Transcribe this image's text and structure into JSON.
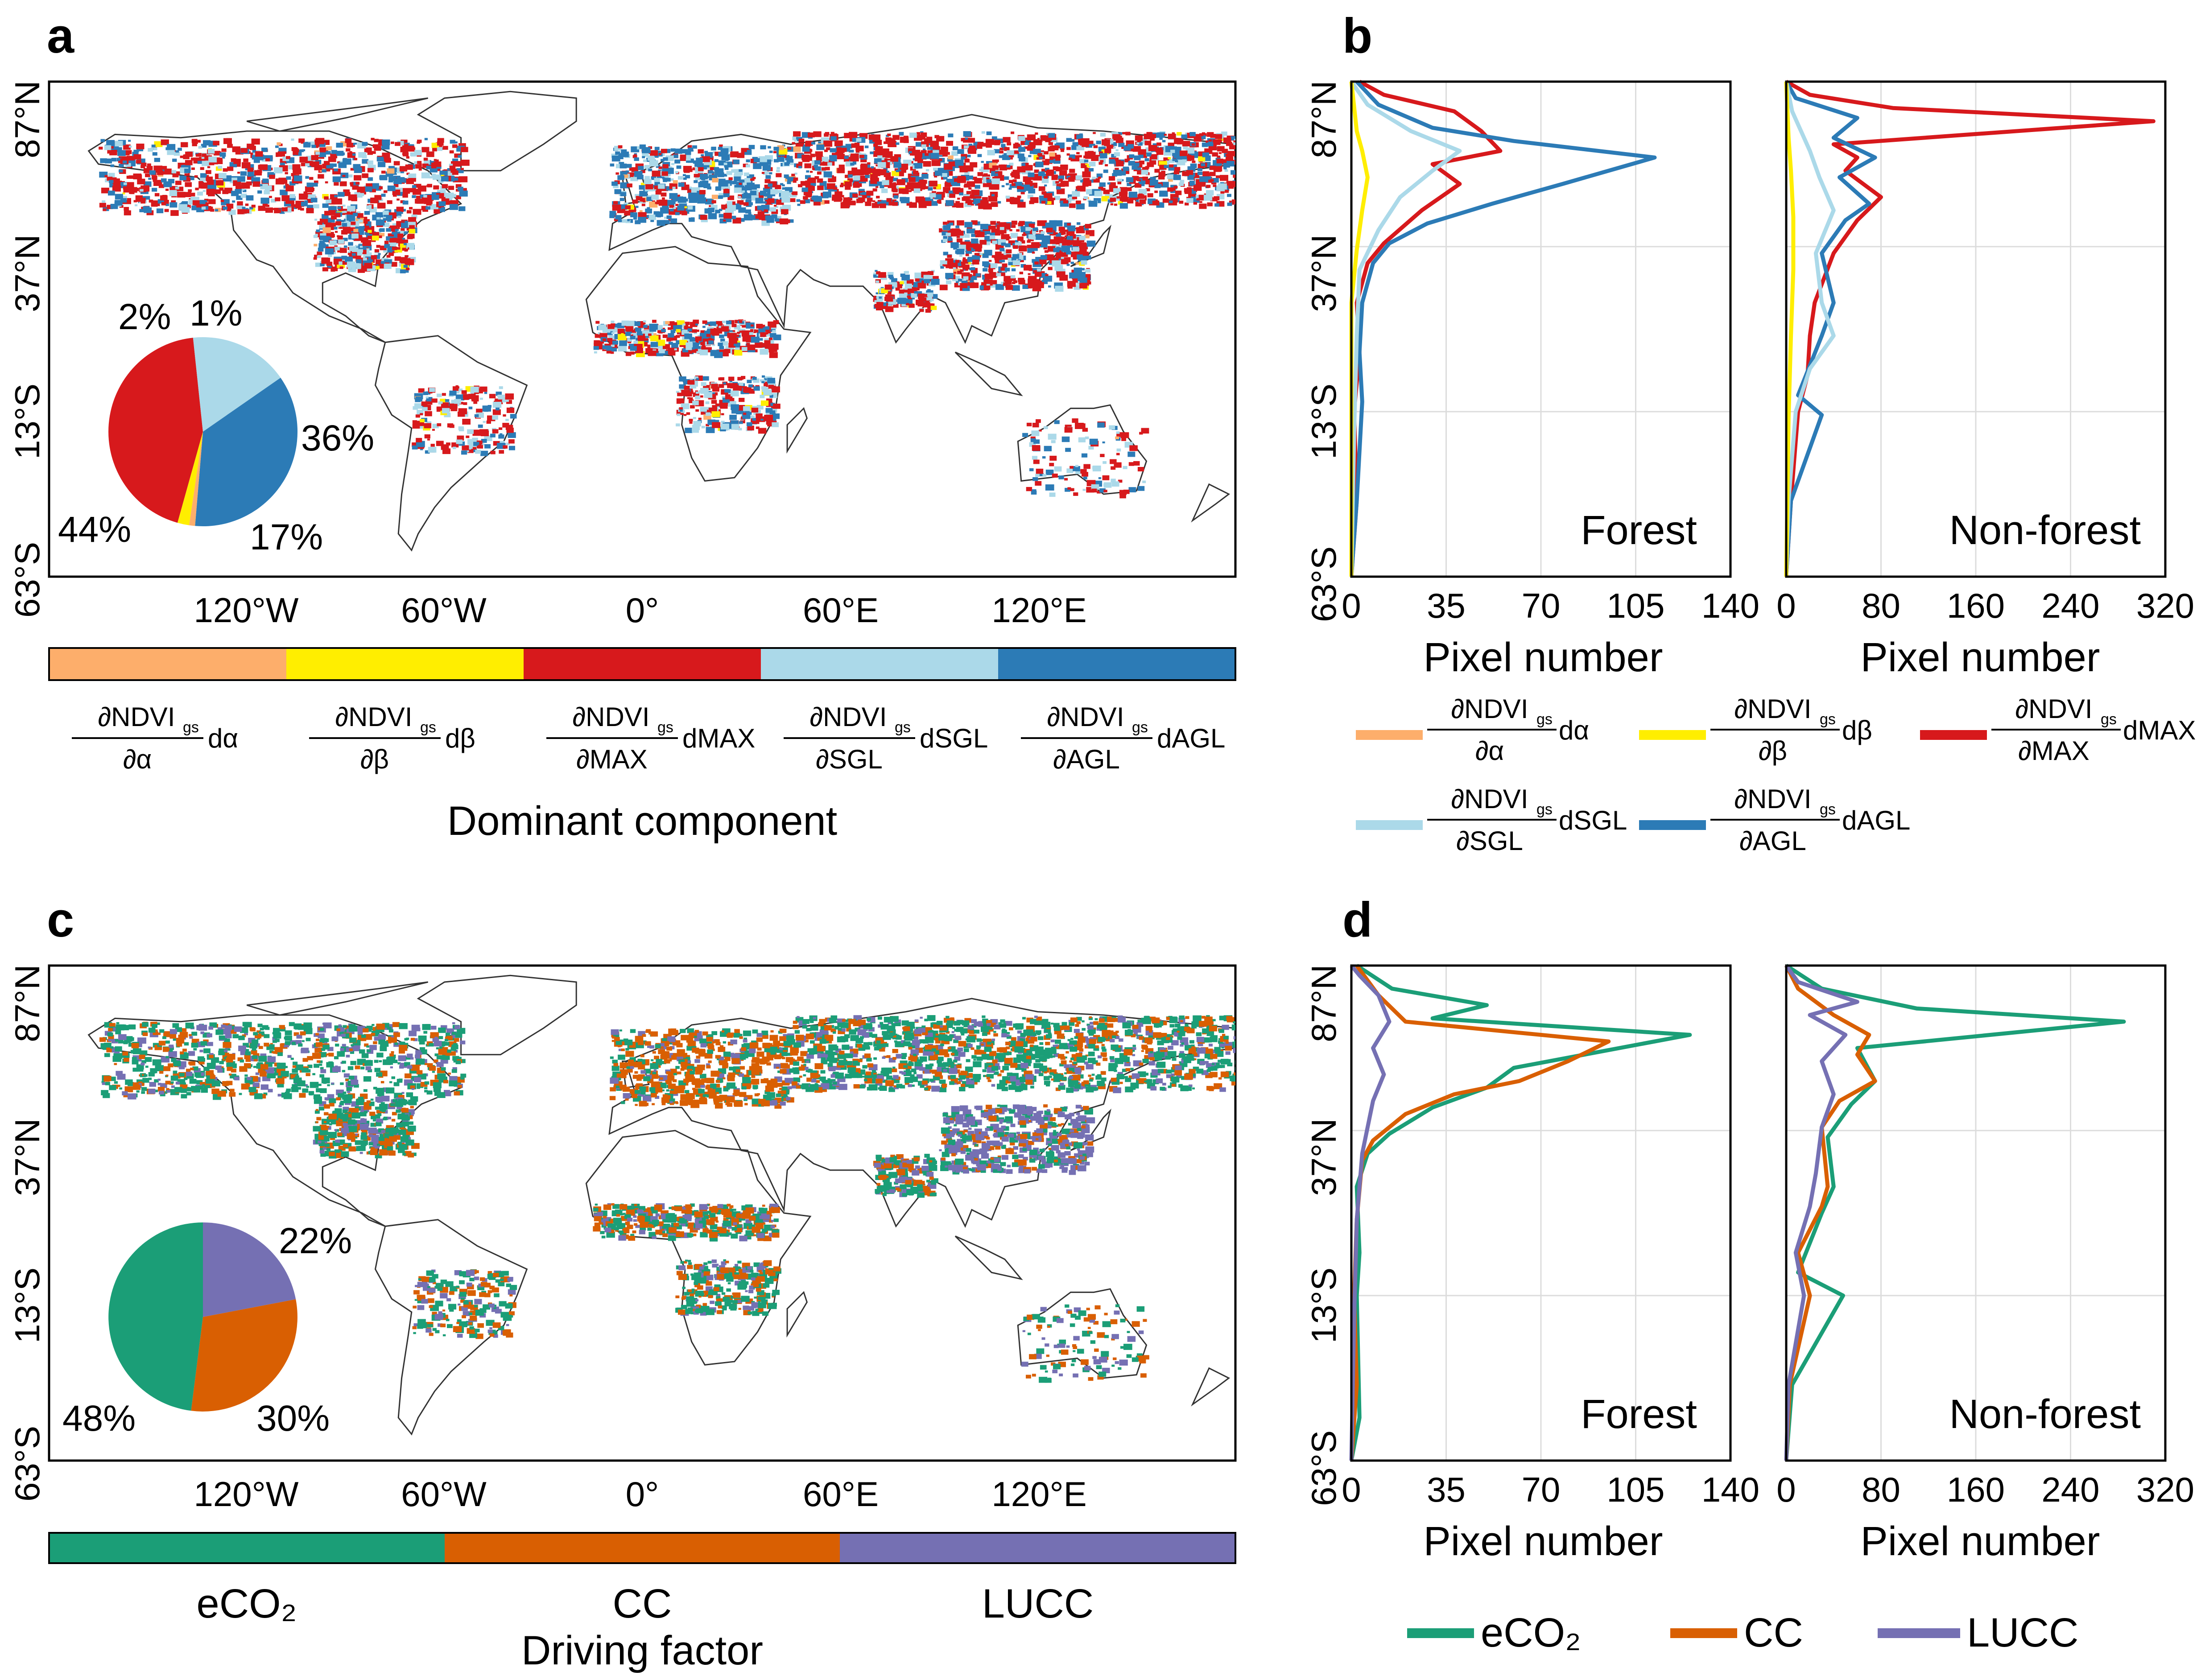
{
  "panels": {
    "a": "a",
    "b": "b",
    "c": "c",
    "d": "d"
  },
  "map": {
    "lat_ticks": [
      "87°N",
      "37°N",
      "13°S",
      "63°S"
    ],
    "lon_ticks": [
      "120°W",
      "60°W",
      "0°",
      "60°E",
      "120°E"
    ]
  },
  "colors": {
    "dalpha": "#fdae6b",
    "dbeta": "#ffee00",
    "dmax": "#d7191c",
    "dsgl": "#abd9e9",
    "dagl": "#2c7bb6",
    "eco2": "#1b9e77",
    "cc": "#d95f02",
    "lucc": "#7570b3"
  },
  "panel_a": {
    "pie": [
      {
        "component": "dMAX",
        "value": 44,
        "label": "44%"
      },
      {
        "component": "dSGL",
        "value": 17,
        "label": "17%"
      },
      {
        "component": "dAGL",
        "value": 36,
        "label": "36%"
      },
      {
        "component": "dα",
        "value": 1,
        "label": "1%"
      },
      {
        "component": "dβ",
        "value": 2,
        "label": "2%"
      }
    ],
    "legend": [
      {
        "num": "∂NDVI",
        "sub": "gs",
        "den": "∂α",
        "d": "dα"
      },
      {
        "num": "∂NDVI",
        "sub": "gs",
        "den": "∂β",
        "d": "dβ"
      },
      {
        "num": "∂NDVI",
        "sub": "gs",
        "den": "∂MAX",
        "d": "dMAX"
      },
      {
        "num": "∂NDVI",
        "sub": "gs",
        "den": "∂SGL",
        "d": "dSGL"
      },
      {
        "num": "∂NDVI",
        "sub": "gs",
        "den": "∂AGL",
        "d": "dAGL"
      }
    ],
    "legend_title": "Dominant component"
  },
  "panel_c": {
    "pie": [
      {
        "factor": "eCO₂",
        "value": 48,
        "label": "48%"
      },
      {
        "factor": "CC",
        "value": 30,
        "label": "30%"
      },
      {
        "factor": "LUCC",
        "value": 22,
        "label": "22%"
      }
    ],
    "legend": [
      "eCO₂",
      "CC",
      "LUCC"
    ],
    "legend_title": "Driving factor"
  },
  "profiles": {
    "xlabel": "Pixel number",
    "forest": {
      "title": "Forest",
      "xlim": [
        0,
        140
      ],
      "xticks": [
        "0",
        "35",
        "70",
        "105",
        "140"
      ]
    },
    "nonforest": {
      "title": "Non-forest",
      "xlim": [
        0,
        320
      ],
      "xticks": [
        "0",
        "80",
        "160",
        "240",
        "320"
      ]
    }
  },
  "chart_data": [
    {
      "type": "line",
      "panel": "b",
      "subplot": "Forest",
      "ylabel": "",
      "xlabel": "Pixel number",
      "xlim": [
        0,
        140
      ],
      "ylim": [
        -63,
        87
      ],
      "y_axis": "latitude",
      "series": [
        {
          "name": "dMAX",
          "points": [
            [
              0,
              -63
            ],
            [
              2,
              -40
            ],
            [
              1,
              -13
            ],
            [
              3,
              5
            ],
            [
              2,
              20
            ],
            [
              6,
              32
            ],
            [
              12,
              38
            ],
            [
              26,
              48
            ],
            [
              40,
              56
            ],
            [
              30,
              62
            ],
            [
              55,
              66
            ],
            [
              48,
              72
            ],
            [
              38,
              78
            ],
            [
              12,
              83
            ],
            [
              3,
              87
            ]
          ]
        },
        {
          "name": "dAGL",
          "points": [
            [
              0,
              -63
            ],
            [
              2,
              -40
            ],
            [
              4,
              -10
            ],
            [
              3,
              5
            ],
            [
              4,
              20
            ],
            [
              8,
              32
            ],
            [
              14,
              38
            ],
            [
              28,
              44
            ],
            [
              52,
              50
            ],
            [
              78,
              56
            ],
            [
              112,
              64
            ],
            [
              60,
              69
            ],
            [
              30,
              73
            ],
            [
              10,
              80
            ],
            [
              2,
              87
            ]
          ]
        },
        {
          "name": "dSGL",
          "points": [
            [
              0,
              -63
            ],
            [
              1,
              -20
            ],
            [
              2,
              10
            ],
            [
              3,
              30
            ],
            [
              10,
              42
            ],
            [
              18,
              52
            ],
            [
              30,
              60
            ],
            [
              40,
              66
            ],
            [
              22,
              72
            ],
            [
              6,
              80
            ],
            [
              0,
              87
            ]
          ]
        },
        {
          "name": "dβ",
          "points": [
            [
              0,
              -63
            ],
            [
              0,
              20
            ],
            [
              2,
              36
            ],
            [
              4,
              48
            ],
            [
              6,
              58
            ],
            [
              4,
              66
            ],
            [
              2,
              72
            ],
            [
              0,
              87
            ]
          ]
        }
      ]
    },
    {
      "type": "line",
      "panel": "b",
      "subplot": "Non-forest",
      "ylabel": "",
      "xlabel": "Pixel number",
      "xlim": [
        0,
        320
      ],
      "ylim": [
        -63,
        87
      ],
      "y_axis": "latitude",
      "series": [
        {
          "name": "dMAX",
          "points": [
            [
              0,
              -63
            ],
            [
              4,
              -40
            ],
            [
              10,
              -13
            ],
            [
              18,
              -2
            ],
            [
              20,
              10
            ],
            [
              24,
              20
            ],
            [
              40,
              35
            ],
            [
              60,
              45
            ],
            [
              80,
              52
            ],
            [
              50,
              60
            ],
            [
              60,
              64
            ],
            [
              40,
              68
            ],
            [
              310,
              75
            ],
            [
              90,
              79
            ],
            [
              20,
              83
            ],
            [
              0,
              87
            ]
          ]
        },
        {
          "name": "dAGL",
          "points": [
            [
              0,
              -63
            ],
            [
              4,
              -40
            ],
            [
              30,
              -14
            ],
            [
              10,
              -8
            ],
            [
              30,
              10
            ],
            [
              40,
              20
            ],
            [
              30,
              35
            ],
            [
              50,
              45
            ],
            [
              70,
              50
            ],
            [
              45,
              58
            ],
            [
              75,
              64
            ],
            [
              40,
              70
            ],
            [
              60,
              76
            ],
            [
              8,
              82
            ],
            [
              0,
              87
            ]
          ]
        },
        {
          "name": "dSGL",
          "points": [
            [
              0,
              -63
            ],
            [
              2,
              -40
            ],
            [
              8,
              -13
            ],
            [
              20,
              0
            ],
            [
              40,
              10
            ],
            [
              30,
              20
            ],
            [
              25,
              35
            ],
            [
              40,
              48
            ],
            [
              28,
              58
            ],
            [
              20,
              66
            ],
            [
              5,
              78
            ],
            [
              0,
              87
            ]
          ]
        },
        {
          "name": "dβ",
          "points": [
            [
              0,
              -63
            ],
            [
              2,
              -15
            ],
            [
              4,
              10
            ],
            [
              6,
              30
            ],
            [
              6,
              46
            ],
            [
              4,
              60
            ],
            [
              2,
              70
            ],
            [
              0,
              87
            ]
          ]
        }
      ]
    },
    {
      "type": "line",
      "panel": "d",
      "subplot": "Forest",
      "ylabel": "",
      "xlabel": "Pixel number",
      "xlim": [
        0,
        140
      ],
      "ylim": [
        -63,
        87
      ],
      "y_axis": "latitude",
      "series": [
        {
          "name": "eCO₂",
          "points": [
            [
              0,
              -63
            ],
            [
              3,
              -50
            ],
            [
              2,
              -13
            ],
            [
              3,
              0
            ],
            [
              2,
              20
            ],
            [
              6,
              30
            ],
            [
              14,
              36
            ],
            [
              30,
              44
            ],
            [
              50,
              50
            ],
            [
              60,
              56
            ],
            [
              125,
              66
            ],
            [
              30,
              71
            ],
            [
              50,
              75
            ],
            [
              15,
              80
            ],
            [
              2,
              87
            ]
          ]
        },
        {
          "name": "CC",
          "points": [
            [
              0,
              -63
            ],
            [
              2,
              -40
            ],
            [
              1,
              -13
            ],
            [
              2,
              10
            ],
            [
              4,
              28
            ],
            [
              8,
              34
            ],
            [
              20,
              42
            ],
            [
              38,
              48
            ],
            [
              62,
              52
            ],
            [
              80,
              58
            ],
            [
              95,
              64
            ],
            [
              20,
              70
            ],
            [
              10,
              78
            ],
            [
              2,
              87
            ]
          ]
        },
        {
          "name": "LUCC",
          "points": [
            [
              0,
              -63
            ],
            [
              1,
              -20
            ],
            [
              2,
              10
            ],
            [
              4,
              30
            ],
            [
              6,
              38
            ],
            [
              8,
              46
            ],
            [
              12,
              54
            ],
            [
              8,
              62
            ],
            [
              14,
              70
            ],
            [
              10,
              78
            ],
            [
              3,
              84
            ],
            [
              0,
              87
            ]
          ]
        }
      ]
    },
    {
      "type": "line",
      "panel": "d",
      "subplot": "Non-forest",
      "ylabel": "",
      "xlabel": "Pixel number",
      "xlim": [
        0,
        320
      ],
      "ylim": [
        -63,
        87
      ],
      "y_axis": "latitude",
      "series": [
        {
          "name": "eCO₂",
          "points": [
            [
              0,
              -63
            ],
            [
              5,
              -40
            ],
            [
              48,
              -13
            ],
            [
              10,
              -6
            ],
            [
              30,
              12
            ],
            [
              40,
              20
            ],
            [
              35,
              35
            ],
            [
              55,
              45
            ],
            [
              75,
              52
            ],
            [
              60,
              62
            ],
            [
              285,
              70
            ],
            [
              110,
              74
            ],
            [
              30,
              80
            ],
            [
              0,
              87
            ]
          ]
        },
        {
          "name": "CC",
          "points": [
            [
              0,
              -63
            ],
            [
              3,
              -40
            ],
            [
              20,
              -13
            ],
            [
              10,
              0
            ],
            [
              30,
              14
            ],
            [
              35,
              20
            ],
            [
              30,
              38
            ],
            [
              45,
              46
            ],
            [
              75,
              52
            ],
            [
              60,
              60
            ],
            [
              70,
              66
            ],
            [
              40,
              72
            ],
            [
              10,
              80
            ],
            [
              0,
              87
            ]
          ]
        },
        {
          "name": "LUCC",
          "points": [
            [
              0,
              -63
            ],
            [
              2,
              -40
            ],
            [
              15,
              -13
            ],
            [
              8,
              0
            ],
            [
              20,
              14
            ],
            [
              25,
              24
            ],
            [
              30,
              38
            ],
            [
              40,
              48
            ],
            [
              30,
              58
            ],
            [
              50,
              66
            ],
            [
              20,
              72
            ],
            [
              60,
              76
            ],
            [
              10,
              82
            ],
            [
              0,
              87
            ]
          ]
        }
      ]
    }
  ]
}
